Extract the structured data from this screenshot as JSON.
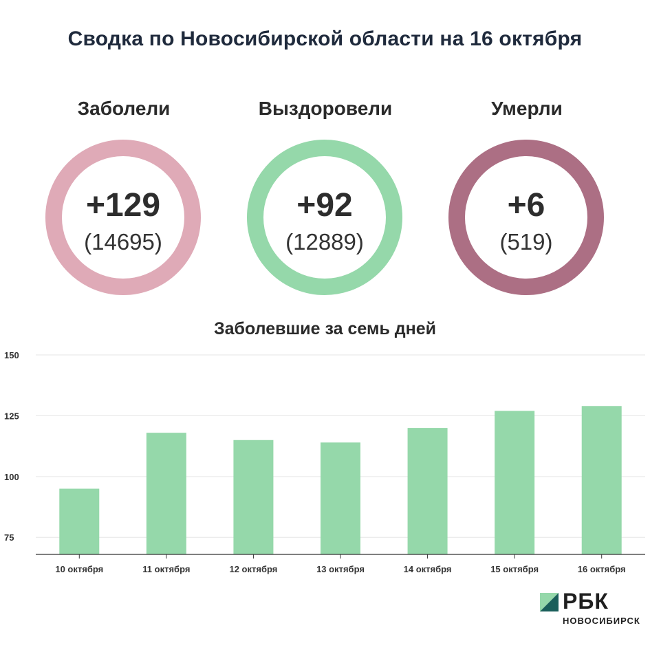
{
  "title": "Сводка по Новосибирской области на 16 октября",
  "stats": [
    {
      "label": "Заболели",
      "delta": "+129",
      "total": "(14695)",
      "color": "#dfaab7"
    },
    {
      "label": "Выздоровели",
      "delta": "+92",
      "total": "(12889)",
      "color": "#95d8aa"
    },
    {
      "label": "Умерли",
      "delta": "+6",
      "total": "(519)",
      "color": "#ac6f84"
    }
  ],
  "chart_data": {
    "type": "bar",
    "title": "Заболевшие за семь дней",
    "categories": [
      "10 октября",
      "11 октября",
      "12 октября",
      "13 октября",
      "14 октября",
      "15 октября",
      "16 октября"
    ],
    "values": [
      95,
      118,
      115,
      114,
      120,
      127,
      129
    ],
    "ylim": [
      68,
      150
    ],
    "yticks": [
      75,
      100,
      125,
      150
    ],
    "bar_color": "#95d8aa",
    "grid": true
  },
  "logo": {
    "text": "РБК",
    "subtext": "НОВОСИБИРСК"
  }
}
